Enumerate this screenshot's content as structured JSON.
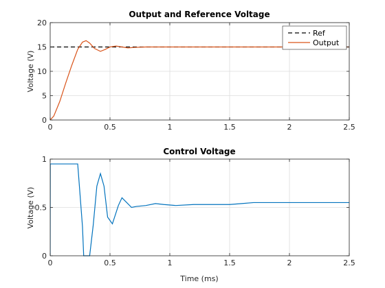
{
  "chart_data": [
    {
      "type": "line",
      "title": "Output and Reference Voltage",
      "xlabel": "",
      "ylabel": "Voltage (V)",
      "xlim": [
        0,
        2.5
      ],
      "ylim": [
        0,
        20
      ],
      "x_ticks": [
        0,
        0.5,
        1,
        1.5,
        2,
        2.5
      ],
      "x_tick_labels": [
        "0",
        "0.5",
        "1",
        "1.5",
        "2",
        "2.5"
      ],
      "y_ticks": [
        0,
        5,
        10,
        15,
        20
      ],
      "y_tick_labels": [
        "0",
        "5",
        "10",
        "15",
        "20"
      ],
      "grid": true,
      "legend_position": "top-right",
      "series": [
        {
          "name": "Ref",
          "style": "dashed",
          "color": "#000000",
          "x": [
            0,
            2.5
          ],
          "y": [
            15,
            15
          ]
        },
        {
          "name": "Output",
          "style": "solid",
          "color": "#d95319",
          "x": [
            0,
            0.03,
            0.08,
            0.13,
            0.18,
            0.23,
            0.27,
            0.3,
            0.33,
            0.37,
            0.42,
            0.46,
            0.5,
            0.55,
            0.6,
            0.65,
            0.7,
            0.8,
            1.0,
            1.5,
            2.0,
            2.5
          ],
          "y": [
            0,
            0.8,
            3.8,
            7.6,
            11.2,
            14.5,
            16.0,
            16.3,
            15.8,
            14.7,
            14.1,
            14.5,
            15.0,
            15.2,
            15.0,
            14.8,
            14.9,
            15.0,
            15.0,
            15.0,
            15.0,
            15.0
          ]
        }
      ]
    },
    {
      "type": "line",
      "title": "Control Voltage",
      "xlabel": "Time (ms)",
      "ylabel": "Voltage (V)",
      "xlim": [
        0,
        2.5
      ],
      "ylim": [
        0,
        1
      ],
      "x_ticks": [
        0,
        0.5,
        1,
        1.5,
        2,
        2.5
      ],
      "x_tick_labels": [
        "0",
        "0.5",
        "1",
        "1.5",
        "2",
        "2.5"
      ],
      "y_ticks": [
        0,
        0.5,
        1
      ],
      "y_tick_labels": [
        "0",
        "0.5",
        "1"
      ],
      "grid": true,
      "series": [
        {
          "color": "#0072bd",
          "x": [
            0,
            0.001,
            0.23,
            0.27,
            0.28,
            0.33,
            0.36,
            0.39,
            0.42,
            0.45,
            0.48,
            0.52,
            0.57,
            0.6,
            0.64,
            0.68,
            0.72,
            0.8,
            0.88,
            0.95,
            1.05,
            1.2,
            1.4,
            1.5,
            1.6,
            1.7,
            1.8,
            2.0,
            2.2,
            2.5
          ],
          "y": [
            0,
            0.95,
            0.95,
            0.3,
            0,
            0,
            0.32,
            0.72,
            0.85,
            0.72,
            0.4,
            0.33,
            0.52,
            0.6,
            0.55,
            0.5,
            0.51,
            0.52,
            0.54,
            0.53,
            0.52,
            0.53,
            0.53,
            0.53,
            0.54,
            0.55,
            0.55,
            0.55,
            0.55,
            0.55
          ]
        }
      ]
    }
  ]
}
